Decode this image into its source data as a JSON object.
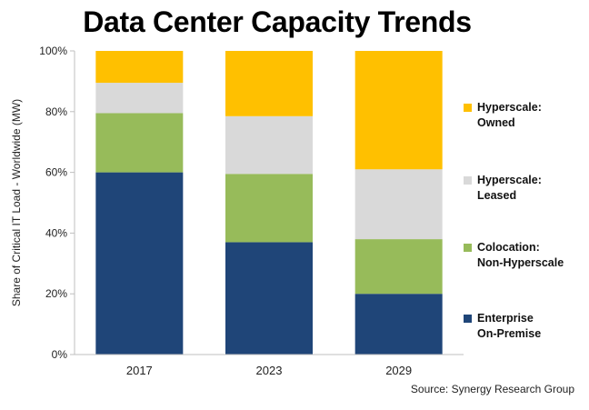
{
  "chart_data": {
    "type": "bar",
    "stacked": true,
    "title": "Data Center Capacity Trends",
    "ylabel": "Share of Critical IT Load - Worldwide (MW)",
    "xlabel": "",
    "categories": [
      "2017",
      "2023",
      "2029"
    ],
    "ylim": [
      0,
      100
    ],
    "yticks": [
      "0%",
      "20%",
      "40%",
      "60%",
      "80%",
      "100%"
    ],
    "series": [
      {
        "name": "Enterprise On-Premise",
        "legend_label": "Enterprise\nOn-Premise",
        "color": "#1F4578",
        "values": [
          60,
          37,
          20
        ]
      },
      {
        "name": "Colocation: Non-Hyperscale",
        "legend_label": "Colocation:\nNon-Hyperscale",
        "color": "#97BB5A",
        "values": [
          19.5,
          22.5,
          18
        ]
      },
      {
        "name": "Hyperscale: Leased",
        "legend_label": "Hyperscale:\nLeased",
        "color": "#D9D9D9",
        "values": [
          10,
          19,
          23
        ]
      },
      {
        "name": "Hyperscale: Owned",
        "legend_label": "Hyperscale:\nOwned",
        "color": "#FFC000",
        "values": [
          10.5,
          21.5,
          39
        ]
      }
    ],
    "source": "Source: Synergy Research Group"
  }
}
